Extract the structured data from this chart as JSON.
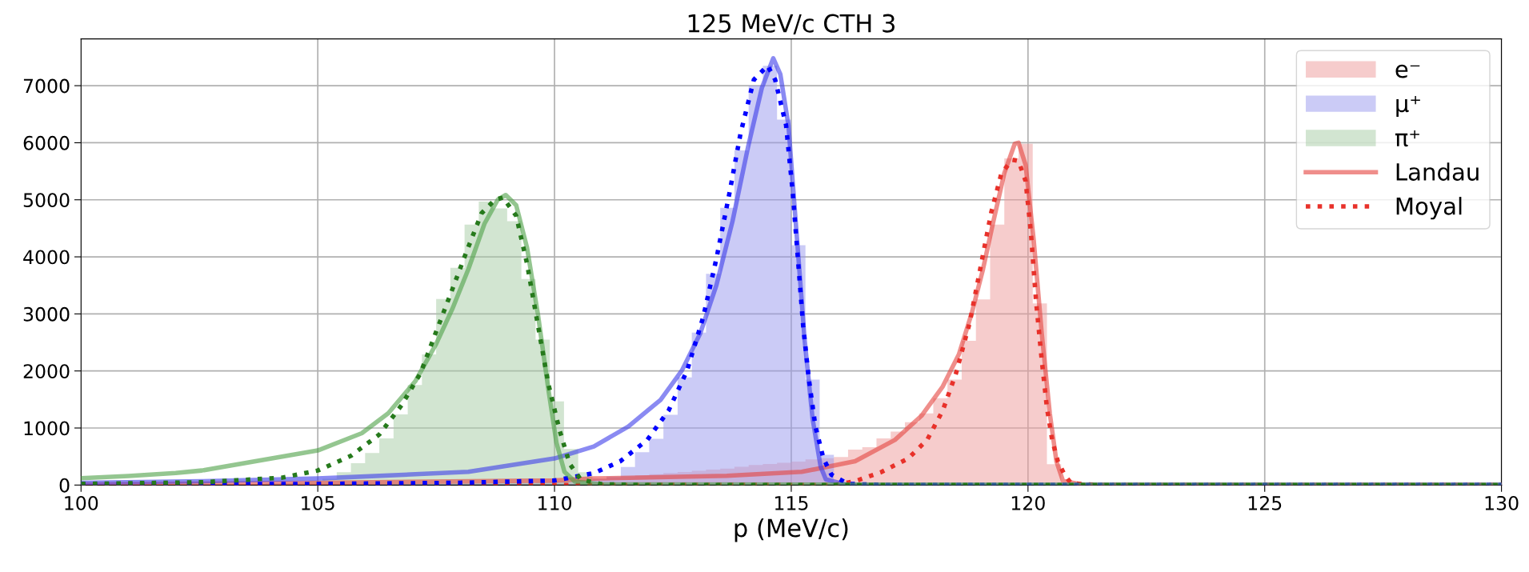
{
  "chart_data": {
    "type": "histogram",
    "title": "125 MeV/c CTH 3",
    "xlabel": "p (MeV/c)",
    "bins": [
      103.0,
      103.3,
      103.6,
      103.9,
      104.2,
      104.5,
      104.8,
      105.1,
      105.4,
      105.7,
      106.0,
      106.3,
      106.6,
      106.9,
      107.2,
      107.5,
      107.8,
      108.1,
      108.4,
      108.7,
      109.0,
      109.3,
      109.6,
      109.9,
      110.2,
      110.5,
      110.8,
      111.1,
      111.4,
      111.7,
      112.0,
      112.3,
      112.6,
      112.9,
      113.2,
      113.5,
      113.8,
      114.1,
      114.4,
      114.7,
      115.0,
      115.3,
      115.6,
      115.9,
      116.2,
      116.5,
      116.8,
      117.1,
      117.4,
      117.7,
      118.0,
      118.3,
      118.6,
      118.9,
      119.2,
      119.5,
      119.8,
      120.1,
      120.4,
      120.7,
      121.0
    ],
    "series": [
      {
        "name": "e⁻",
        "color": "#f6cccc",
        "values": [
          0,
          0,
          0,
          0,
          0,
          10,
          10,
          10,
          10,
          10,
          10,
          10,
          20,
          20,
          20,
          20,
          20,
          30,
          30,
          30,
          30,
          30,
          40,
          50,
          60,
          90,
          110,
          130,
          150,
          170,
          190,
          210,
          230,
          250,
          270,
          290,
          320,
          350,
          370,
          390,
          410,
          450,
          470,
          490,
          623,
          665,
          819,
          936,
          1100,
          1255,
          1521,
          1849,
          2528,
          3254,
          4565,
          5726,
          5983,
          3184,
          365,
          0
        ]
      },
      {
        "name": "μ⁺",
        "color": "#cbcbf6",
        "values": [
          0,
          0,
          0,
          0,
          10,
          10,
          10,
          10,
          10,
          10,
          10,
          20,
          20,
          20,
          20,
          20,
          30,
          30,
          30,
          40,
          40,
          40,
          50,
          60,
          70,
          90,
          110,
          150,
          318,
          576,
          810,
          1231,
          1887,
          2673,
          3703,
          4860,
          5866,
          7000,
          7350,
          6404,
          4204,
          1849,
          529,
          30,
          0,
          0,
          0,
          0,
          0,
          0,
          0,
          0,
          0,
          0,
          0,
          0,
          0,
          0,
          0,
          0
        ]
      },
      {
        "name": "π⁺",
        "color": "#d2e5d1",
        "values": [
          10,
          10,
          20,
          30,
          40,
          55,
          75,
          110,
          224,
          383,
          561,
          818,
          1238,
          1752,
          2290,
          3262,
          3808,
          4565,
          4967,
          4850,
          4626,
          3612,
          2551,
          1467,
          631,
          224,
          0,
          0,
          0,
          0,
          0,
          0,
          0,
          0,
          0,
          0,
          0,
          0,
          0,
          0,
          0,
          0,
          0,
          0,
          0,
          0,
          0,
          0,
          0,
          0,
          0,
          0,
          0,
          0,
          0,
          0,
          0,
          0,
          0,
          0
        ]
      },
      {
        "name": "Landau",
        "type": "line",
        "line_style": "solid",
        "color": "#ef8e8b",
        "x": [
          100,
          105,
          110,
          110.83,
          113.64,
          115.22,
          116.35,
          117.19,
          117.75,
          118.2,
          118.54,
          118.82,
          119.05,
          119.27,
          119.5,
          119.72,
          119.8,
          119.95,
          120.12,
          120.29,
          120.46,
          120.6,
          120.74,
          121.2,
          130
        ],
        "values": [
          10,
          40,
          80,
          115,
          161,
          231,
          418,
          792,
          1213,
          1728,
          2289,
          3036,
          3784,
          4626,
          5467,
          5982,
          6000,
          5607,
          4299,
          2662,
          1259,
          418,
          70,
          0,
          0
        ]
      },
      {
        "name": "Moyal",
        "type": "line",
        "line_style": "dotted",
        "color": "#e8312a",
        "x": [
          100,
          110,
          114,
          115.9,
          116.35,
          116.91,
          117.47,
          117.87,
          118.2,
          118.48,
          118.77,
          118.99,
          119.22,
          119.44,
          119.67,
          119.8,
          119.95,
          120.06,
          120.17,
          120.29,
          120.4,
          120.51,
          120.63,
          120.77,
          120.91,
          121.5,
          130
        ],
        "values": [
          0,
          0,
          5,
          0,
          67,
          231,
          466,
          792,
          1307,
          1961,
          2850,
          3784,
          4766,
          5467,
          5701,
          5680,
          5327,
          4439,
          3223,
          2195,
          1353,
          792,
          418,
          185,
          30,
          0,
          0
        ]
      },
      {
        "type": "line",
        "line_style": "solid",
        "color": "#8a8af2",
        "x": [
          100,
          102.55,
          105,
          108.18,
          110,
          110.83,
          111.56,
          112.24,
          112.69,
          113.08,
          113.42,
          113.76,
          114.09,
          114.38,
          114.62,
          114.77,
          114.94,
          115.11,
          115.28,
          115.45,
          115.62,
          115.73,
          116.2,
          130
        ],
        "values": [
          40,
          67,
          115,
          231,
          466,
          676,
          1027,
          1494,
          2008,
          2662,
          3504,
          4626,
          5935,
          6964,
          7480,
          7198,
          6309,
          4439,
          2569,
          1167,
          325,
          100,
          0,
          0
        ]
      },
      {
        "type": "line",
        "line_style": "dotted",
        "color": "#0000ff",
        "x": [
          100,
          105,
          108,
          110,
          110.83,
          111.39,
          111.96,
          112.41,
          112.8,
          113.14,
          113.42,
          113.7,
          113.93,
          114.21,
          114.5,
          114.66,
          114.89,
          115.03,
          115.14,
          115.25,
          115.37,
          115.51,
          115.68,
          115.85,
          116.2,
          117,
          130
        ],
        "values": [
          10,
          20,
          40,
          80,
          208,
          418,
          792,
          1307,
          2008,
          2943,
          3972,
          5140,
          6168,
          7104,
          7350,
          7104,
          6309,
          5140,
          3972,
          2802,
          1868,
          1027,
          466,
          180,
          20,
          0,
          0
        ]
      },
      {
        "type": "line",
        "line_style": "solid",
        "color": "#94c690",
        "x": [
          100,
          101,
          102,
          102.55,
          105,
          105.93,
          106.49,
          107.06,
          107.5,
          107.84,
          108.18,
          108.52,
          108.8,
          108.97,
          109.19,
          109.42,
          109.65,
          109.87,
          110.04,
          110.21,
          110.43,
          111,
          130
        ],
        "values": [
          120,
          160,
          210,
          255,
          606,
          909,
          1260,
          1820,
          2475,
          3083,
          3784,
          4579,
          5000,
          5084,
          4906,
          4158,
          2990,
          1680,
          746,
          231,
          60,
          10,
          0
        ]
      },
      {
        "type": "line",
        "line_style": "dotted",
        "color": "#267a1c",
        "x": [
          100,
          102.55,
          104.24,
          105,
          105.7,
          106.3,
          106.77,
          107.17,
          107.51,
          107.79,
          108.13,
          108.46,
          108.74,
          108.91,
          109.19,
          109.42,
          109.65,
          109.87,
          110.1,
          110.32,
          110.55,
          111,
          112,
          130
        ],
        "values": [
          20,
          49,
          129,
          255,
          512,
          886,
          1400,
          1961,
          2710,
          3317,
          4065,
          4766,
          5000,
          5038,
          4720,
          3878,
          2802,
          1774,
          979,
          372,
          100,
          15,
          0,
          0
        ]
      }
    ],
    "xlim": [
      100,
      130
    ],
    "xticks": [
      100,
      105,
      110,
      115,
      120,
      125,
      130
    ],
    "ylim": [
      0,
      7820
    ],
    "yticks": [
      0,
      1000,
      2000,
      3000,
      4000,
      5000,
      6000,
      7000
    ],
    "grid": true,
    "legend": "top right"
  }
}
